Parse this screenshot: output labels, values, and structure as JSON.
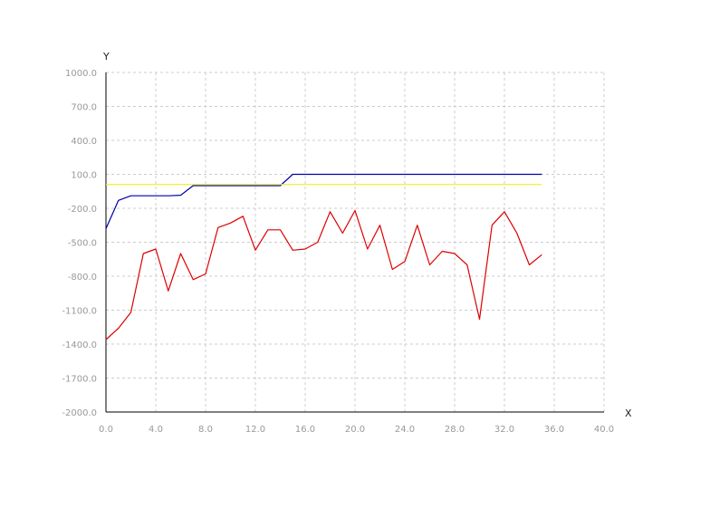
{
  "chart_data": {
    "type": "line",
    "xlabel": "X",
    "ylabel": "Y",
    "xlim": [
      0,
      40
    ],
    "ylim": [
      -2000,
      1000
    ],
    "grid": true,
    "x_ticks": [
      "0.0",
      "4.0",
      "8.0",
      "12.0",
      "16.0",
      "20.0",
      "24.0",
      "28.0",
      "32.0",
      "36.0",
      "40.0"
    ],
    "y_ticks": [
      "1000.0",
      "700.0",
      "400.0",
      "100.0",
      "-200.0",
      "-500.0",
      "-800.0",
      "-1100.0",
      "-1400.0",
      "-1700.0",
      "-2000.0"
    ],
    "x_tick_values": [
      0,
      4,
      8,
      12,
      16,
      20,
      24,
      28,
      32,
      36,
      40
    ],
    "y_tick_values": [
      1000,
      700,
      400,
      100,
      -200,
      -500,
      -800,
      -1100,
      -1400,
      -1700,
      -2000
    ],
    "series": [
      {
        "color": "#0000aa",
        "x": [
          0,
          1,
          2,
          3,
          4,
          5,
          6,
          7,
          8,
          9,
          10,
          11,
          12,
          13,
          14,
          15,
          16,
          17,
          18,
          19,
          20,
          21,
          22,
          23,
          24,
          25,
          26,
          27,
          28,
          29,
          30,
          31,
          32,
          33,
          34,
          35
        ],
        "values": [
          -380,
          -130,
          -90,
          -90,
          -90,
          -90,
          -85,
          0,
          0,
          0,
          0,
          0,
          0,
          0,
          0,
          100,
          100,
          100,
          100,
          100,
          100,
          100,
          100,
          100,
          100,
          100,
          100,
          100,
          100,
          100,
          100,
          100,
          100,
          100,
          100,
          100
        ]
      },
      {
        "color": "#eeee22",
        "x": [
          0,
          35
        ],
        "values": [
          10,
          10
        ]
      },
      {
        "color": "#dd0000",
        "x": [
          0,
          1,
          2,
          3,
          4,
          5,
          6,
          7,
          8,
          9,
          10,
          11,
          12,
          13,
          14,
          15,
          16,
          17,
          18,
          19,
          20,
          21,
          22,
          23,
          24,
          25,
          26,
          27,
          28,
          29,
          30,
          31,
          32,
          33,
          34,
          35
        ],
        "values": [
          -1360,
          -1260,
          -1120,
          -600,
          -560,
          -930,
          -600,
          -830,
          -780,
          -370,
          -330,
          -270,
          -570,
          -390,
          -390,
          -570,
          -560,
          -500,
          -230,
          -420,
          -220,
          -560,
          -350,
          -740,
          -670,
          -350,
          -700,
          -580,
          -600,
          -700,
          -1180,
          -350,
          -230,
          -420,
          -700,
          -610
        ]
      }
    ]
  }
}
